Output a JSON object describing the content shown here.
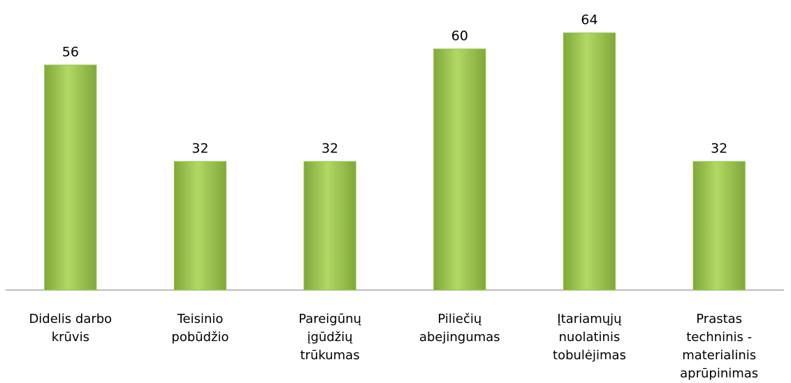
{
  "chart_data": {
    "type": "bar",
    "categories": [
      "Didelis darbo krūvis",
      "Teisinio pobūdžio",
      "Pareigūnų įgūdžių trūkumas",
      "Piliečių abejingumas",
      "Įtariamųjų nuolatinis tobulėjimas",
      "Prastas techninis - materialinis aprūpinimas"
    ],
    "values": [
      56,
      32,
      32,
      60,
      64,
      32
    ],
    "color": "#9ac44c"
  }
}
